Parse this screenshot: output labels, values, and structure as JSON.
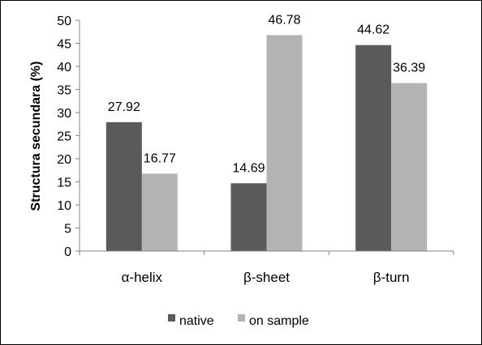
{
  "chart_data": {
    "type": "bar",
    "title": "",
    "xlabel": "",
    "ylabel": "Structura secundara  (%)",
    "ylim": [
      0,
      50
    ],
    "ytick_step": 5,
    "yticks": [
      "0",
      "5",
      "10",
      "15",
      "20",
      "25",
      "30",
      "35",
      "40",
      "45",
      "50"
    ],
    "grid": false,
    "legend_position": "bottom",
    "categories": [
      "α-helix",
      "β-sheet",
      "β-turn"
    ],
    "series": [
      {
        "name": "native",
        "color": "#5a5a5a",
        "values": [
          27.92,
          14.69,
          44.62
        ],
        "labels": [
          "27.92",
          "14.69",
          "44.62"
        ]
      },
      {
        "name": "on sample",
        "color": "#b3b3b3",
        "values": [
          16.77,
          46.78,
          36.39
        ],
        "labels": [
          "16.77",
          "46.78",
          "36.39"
        ]
      }
    ]
  }
}
